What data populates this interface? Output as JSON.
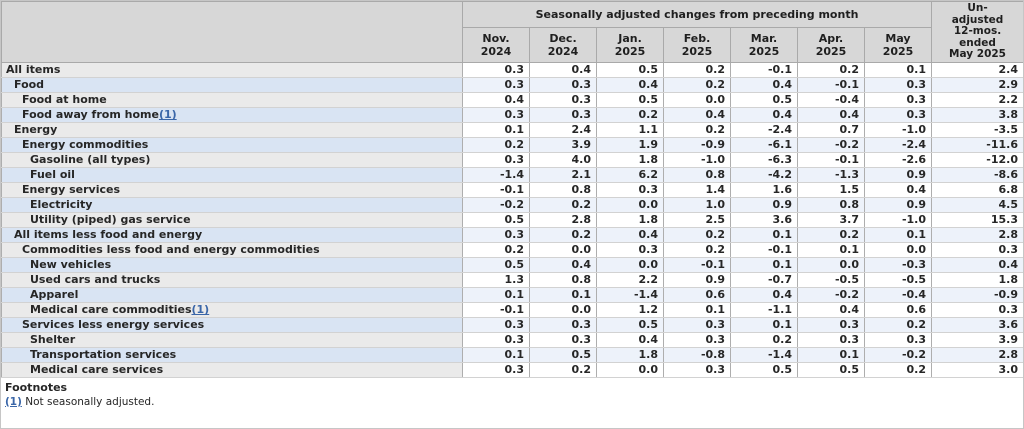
{
  "table": {
    "header": {
      "group_title": "Seasonally adjusted changes from preceding month",
      "unadjusted_lines": [
        "Un-",
        "adjusted",
        "12-mos.",
        "ended",
        "May 2025"
      ],
      "months": [
        {
          "line1": "Nov.",
          "line2": "2024"
        },
        {
          "line1": "Dec.",
          "line2": "2024"
        },
        {
          "line1": "Jan.",
          "line2": "2025"
        },
        {
          "line1": "Feb.",
          "line2": "2025"
        },
        {
          "line1": "Mar.",
          "line2": "2025"
        },
        {
          "line1": "Apr.",
          "line2": "2025"
        },
        {
          "line1": "May",
          "line2": "2025"
        }
      ]
    },
    "rows": [
      {
        "label": "All items",
        "indent": 0,
        "footnote_marker": null,
        "values": [
          "0.3",
          "0.4",
          "0.5",
          "0.2",
          "-0.1",
          "0.2",
          "0.1",
          "2.4"
        ]
      },
      {
        "label": "Food",
        "indent": 1,
        "footnote_marker": null,
        "values": [
          "0.3",
          "0.3",
          "0.4",
          "0.2",
          "0.4",
          "-0.1",
          "0.3",
          "2.9"
        ]
      },
      {
        "label": "Food at home",
        "indent": 2,
        "footnote_marker": null,
        "values": [
          "0.4",
          "0.3",
          "0.5",
          "0.0",
          "0.5",
          "-0.4",
          "0.3",
          "2.2"
        ]
      },
      {
        "label": "Food away from home",
        "indent": 2,
        "footnote_marker": "(1)",
        "values": [
          "0.3",
          "0.3",
          "0.2",
          "0.4",
          "0.4",
          "0.4",
          "0.3",
          "3.8"
        ]
      },
      {
        "label": "Energy",
        "indent": 1,
        "footnote_marker": null,
        "values": [
          "0.1",
          "2.4",
          "1.1",
          "0.2",
          "-2.4",
          "0.7",
          "-1.0",
          "-3.5"
        ]
      },
      {
        "label": "Energy commodities",
        "indent": 2,
        "footnote_marker": null,
        "values": [
          "0.2",
          "3.9",
          "1.9",
          "-0.9",
          "-6.1",
          "-0.2",
          "-2.4",
          "-11.6"
        ]
      },
      {
        "label": "Gasoline (all types)",
        "indent": 3,
        "footnote_marker": null,
        "values": [
          "0.3",
          "4.0",
          "1.8",
          "-1.0",
          "-6.3",
          "-0.1",
          "-2.6",
          "-12.0"
        ]
      },
      {
        "label": "Fuel oil",
        "indent": 3,
        "footnote_marker": null,
        "values": [
          "-1.4",
          "2.1",
          "6.2",
          "0.8",
          "-4.2",
          "-1.3",
          "0.9",
          "-8.6"
        ]
      },
      {
        "label": "Energy services",
        "indent": 2,
        "footnote_marker": null,
        "values": [
          "-0.1",
          "0.8",
          "0.3",
          "1.4",
          "1.6",
          "1.5",
          "0.4",
          "6.8"
        ]
      },
      {
        "label": "Electricity",
        "indent": 3,
        "footnote_marker": null,
        "values": [
          "-0.2",
          "0.2",
          "0.0",
          "1.0",
          "0.9",
          "0.8",
          "0.9",
          "4.5"
        ]
      },
      {
        "label": "Utility (piped) gas service",
        "indent": 3,
        "footnote_marker": null,
        "values": [
          "0.5",
          "2.8",
          "1.8",
          "2.5",
          "3.6",
          "3.7",
          "-1.0",
          "15.3"
        ]
      },
      {
        "label": "All items less food and energy",
        "indent": 1,
        "footnote_marker": null,
        "values": [
          "0.3",
          "0.2",
          "0.4",
          "0.2",
          "0.1",
          "0.2",
          "0.1",
          "2.8"
        ]
      },
      {
        "label": "Commodities less food and energy commodities",
        "indent": 2,
        "footnote_marker": null,
        "values": [
          "0.2",
          "0.0",
          "0.3",
          "0.2",
          "-0.1",
          "0.1",
          "0.0",
          "0.3"
        ]
      },
      {
        "label": "New vehicles",
        "indent": 3,
        "footnote_marker": null,
        "values": [
          "0.5",
          "0.4",
          "0.0",
          "-0.1",
          "0.1",
          "0.0",
          "-0.3",
          "0.4"
        ]
      },
      {
        "label": "Used cars and trucks",
        "indent": 3,
        "footnote_marker": null,
        "values": [
          "1.3",
          "0.8",
          "2.2",
          "0.9",
          "-0.7",
          "-0.5",
          "-0.5",
          "1.8"
        ]
      },
      {
        "label": "Apparel",
        "indent": 3,
        "footnote_marker": null,
        "values": [
          "0.1",
          "0.1",
          "-1.4",
          "0.6",
          "0.4",
          "-0.2",
          "-0.4",
          "-0.9"
        ]
      },
      {
        "label": "Medical care commodities",
        "indent": 3,
        "footnote_marker": "(1)",
        "values": [
          "-0.1",
          "0.0",
          "1.2",
          "0.1",
          "-1.1",
          "0.4",
          "0.6",
          "0.3"
        ]
      },
      {
        "label": "Services less energy services",
        "indent": 2,
        "footnote_marker": null,
        "values": [
          "0.3",
          "0.3",
          "0.5",
          "0.3",
          "0.1",
          "0.3",
          "0.2",
          "3.6"
        ]
      },
      {
        "label": "Shelter",
        "indent": 3,
        "footnote_marker": null,
        "values": [
          "0.3",
          "0.3",
          "0.4",
          "0.3",
          "0.2",
          "0.3",
          "0.3",
          "3.9"
        ]
      },
      {
        "label": "Transportation services",
        "indent": 3,
        "footnote_marker": null,
        "values": [
          "0.1",
          "0.5",
          "1.8",
          "-0.8",
          "-1.4",
          "0.1",
          "-0.2",
          "2.8"
        ]
      },
      {
        "label": "Medical care services",
        "indent": 3,
        "footnote_marker": null,
        "values": [
          "0.3",
          "0.2",
          "0.0",
          "0.3",
          "0.5",
          "0.5",
          "0.2",
          "3.0"
        ]
      }
    ]
  },
  "footnotes": {
    "title": "Footnotes",
    "items": [
      {
        "marker": "(1)",
        "text": "Not seasonally adjusted."
      }
    ]
  },
  "colors": {
    "header_bg": "#d7d7d7",
    "stub_gray": "#eaeaea",
    "stub_blue": "#d9e4f3",
    "data_white": "#ffffff",
    "data_blue": "#edf2fa",
    "link_blue": "#3a66a8"
  }
}
